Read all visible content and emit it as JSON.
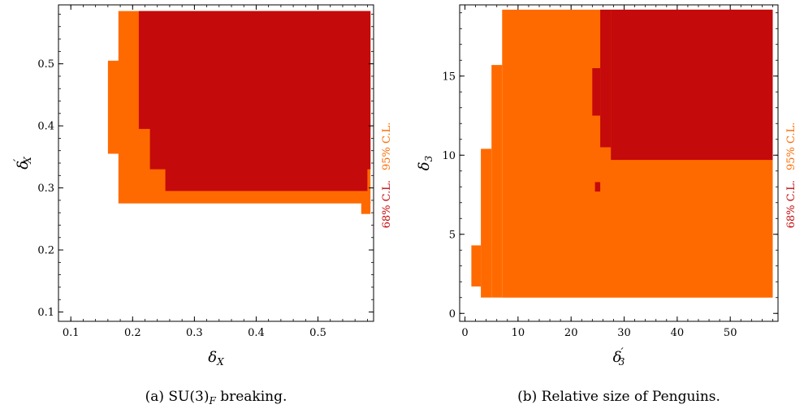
{
  "colors": {
    "c68": "#c40a0a",
    "c95": "#ff6a00"
  },
  "chart_data": [
    {
      "type": "heatmap",
      "title": "",
      "xlabel_symbol": "δ",
      "xlabel_sub": "X",
      "xlabel_prime": "",
      "ylabel_symbol": "δ",
      "ylabel_sub": "X",
      "ylabel_prime": "′",
      "xlim": [
        0.08,
        0.59
      ],
      "ylim": [
        0.085,
        0.595
      ],
      "xticks": [
        0.1,
        0.2,
        0.3,
        0.4,
        0.5
      ],
      "xtick_labels": [
        "0.1",
        "0.2",
        "0.3",
        "0.4",
        "0.5"
      ],
      "yticks": [
        0.1,
        0.2,
        0.3,
        0.4,
        0.5
      ],
      "ytick_labels": [
        "0.1",
        "0.2",
        "0.3",
        "0.4",
        "0.5"
      ],
      "legend": [
        {
          "name": "68% C.L.",
          "color": "#c40a0a"
        },
        {
          "name": "95% C.L.",
          "color": "#ff6a00"
        }
      ],
      "caption_prefix": "(a)  SU(3)",
      "caption_sub": "F",
      "caption_suffix": " breaking.",
      "regions": [
        {
          "level": "95",
          "x": [
            0.177,
            0.585
          ],
          "y": [
            0.275,
            0.585
          ]
        },
        {
          "level": "95",
          "x": [
            0.16,
            0.18
          ],
          "y": [
            0.355,
            0.505
          ]
        },
        {
          "level": "95",
          "x": [
            0.57,
            0.585
          ],
          "y": [
            0.258,
            0.278
          ]
        },
        {
          "level": "68",
          "x": [
            0.21,
            0.585
          ],
          "y": [
            0.395,
            0.585
          ]
        },
        {
          "level": "68",
          "x": [
            0.228,
            0.585
          ],
          "y": [
            0.33,
            0.4
          ]
        },
        {
          "level": "68",
          "x": [
            0.253,
            0.58
          ],
          "y": [
            0.295,
            0.335
          ]
        }
      ]
    },
    {
      "type": "heatmap",
      "title": "",
      "xlabel_symbol": "δ",
      "xlabel_sub": "3",
      "xlabel_prime": "′",
      "ylabel_symbol": "δ",
      "ylabel_sub": "3",
      "ylabel_prime": "",
      "xlim": [
        -1,
        59
      ],
      "ylim": [
        -0.5,
        19.5
      ],
      "xticks": [
        0,
        10,
        20,
        30,
        40,
        50
      ],
      "xtick_labels": [
        "0",
        "10",
        "20",
        "30",
        "40",
        "50"
      ],
      "yticks": [
        0,
        5,
        10,
        15
      ],
      "ytick_labels": [
        "0",
        "5",
        "10",
        "15"
      ],
      "legend": [
        {
          "name": "68% C.L.",
          "color": "#c40a0a"
        },
        {
          "name": "95% C.L.",
          "color": "#ff6a00"
        }
      ],
      "caption_prefix": "(b)  Relative size of Penguins.",
      "caption_sub": "",
      "caption_suffix": "",
      "regions": [
        {
          "level": "95",
          "x": [
            7,
            58
          ],
          "y": [
            1,
            19.2
          ]
        },
        {
          "level": "95",
          "x": [
            5,
            7
          ],
          "y": [
            1,
            15.7
          ]
        },
        {
          "level": "95",
          "x": [
            3,
            5
          ],
          "y": [
            1,
            10.4
          ]
        },
        {
          "level": "95",
          "x": [
            1.2,
            3
          ],
          "y": [
            1.7,
            4.3
          ]
        },
        {
          "level": "68",
          "x": [
            27.5,
            58
          ],
          "y": [
            9.7,
            19.2
          ]
        },
        {
          "level": "68",
          "x": [
            25.5,
            27.5
          ],
          "y": [
            10.5,
            19.2
          ]
        },
        {
          "level": "68",
          "x": [
            24,
            25.5
          ],
          "y": [
            12.5,
            15.5
          ]
        },
        {
          "level": "68",
          "x": [
            24.5,
            25.5
          ],
          "y": [
            7.7,
            8.3
          ]
        }
      ]
    }
  ]
}
